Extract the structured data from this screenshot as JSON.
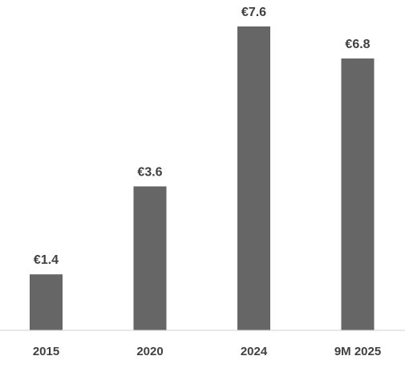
{
  "chart_data": {
    "type": "bar",
    "categories": [
      "2015",
      "2020",
      "2024",
      "9M 2025"
    ],
    "values": [
      1.4,
      3.6,
      7.6,
      6.8
    ],
    "data_labels": [
      "€1.4",
      "€3.6",
      "€7.6",
      "€6.8"
    ],
    "title": "",
    "xlabel": "",
    "ylabel": "",
    "ylim": [
      0,
      7.6
    ],
    "grid": false,
    "legend": "none",
    "colors": {
      "bar": "#666666",
      "text": "#404040",
      "axis": "#d0d0d0"
    }
  }
}
